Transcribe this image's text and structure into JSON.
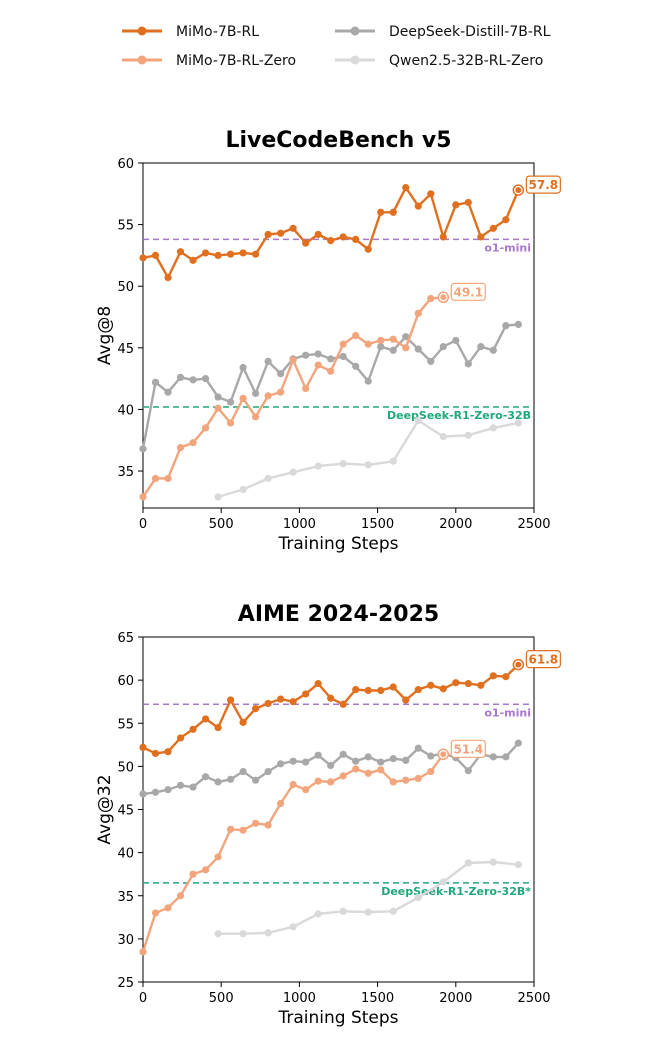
{
  "legend": [
    {
      "name": "MiMo-7B-RL",
      "color": "#e07020"
    },
    {
      "name": "DeepSeek-Distill-7B-RL",
      "color": "#a8a8a8"
    },
    {
      "name": "MiMo-7B-RL-Zero",
      "color": "#f2a57c"
    },
    {
      "name": "Qwen2.5-32B-RL-Zero",
      "color": "#d9d9d9"
    }
  ],
  "chart_data": [
    {
      "type": "line",
      "title": "LiveCodeBench v5",
      "xlabel": "Training Steps",
      "ylabel": "Avg@8",
      "xlim": [
        0,
        2500
      ],
      "ylim": [
        32,
        60
      ],
      "xticks": [
        0,
        500,
        1000,
        1500,
        2000,
        2500
      ],
      "yticks": [
        35,
        40,
        45,
        50,
        55,
        60
      ],
      "grid": false,
      "series": [
        {
          "name": "MiMo-7B-RL",
          "color": "#e07020",
          "x": [
            0,
            80,
            160,
            240,
            320,
            400,
            480,
            560,
            640,
            720,
            800,
            880,
            960,
            1040,
            1120,
            1200,
            1280,
            1360,
            1440,
            1520,
            1600,
            1680,
            1760,
            1840,
            1920,
            2000,
            2080,
            2160,
            2240,
            2320,
            2400
          ],
          "y": [
            52.3,
            52.5,
            50.7,
            52.8,
            52.1,
            52.7,
            52.5,
            52.6,
            52.7,
            52.6,
            54.2,
            54.3,
            54.7,
            53.5,
            54.2,
            53.7,
            54.0,
            53.8,
            53.0,
            56.0,
            56.0,
            58.0,
            56.5,
            57.5,
            54.0,
            56.6,
            56.8,
            54.0,
            54.7,
            55.4,
            57.8
          ]
        },
        {
          "name": "MiMo-7B-RL-Zero",
          "color": "#f2a57c",
          "x": [
            0,
            80,
            160,
            240,
            320,
            400,
            480,
            560,
            640,
            720,
            800,
            880,
            960,
            1040,
            1120,
            1200,
            1280,
            1360,
            1440,
            1520,
            1600,
            1680,
            1760,
            1840,
            1920
          ],
          "y": [
            32.9,
            34.4,
            34.4,
            36.9,
            37.3,
            38.5,
            40.1,
            38.9,
            40.9,
            39.4,
            41.1,
            41.4,
            44.0,
            41.7,
            43.6,
            43.1,
            45.3,
            46.0,
            45.3,
            45.6,
            45.7,
            45.0,
            47.8,
            49.0,
            49.1
          ]
        },
        {
          "name": "DeepSeek-Distill-7B-RL",
          "color": "#a8a8a8",
          "x": [
            0,
            80,
            160,
            240,
            320,
            400,
            480,
            560,
            640,
            720,
            800,
            880,
            960,
            1040,
            1120,
            1200,
            1280,
            1360,
            1440,
            1520,
            1600,
            1680,
            1760,
            1840,
            1920,
            2000,
            2080,
            2160,
            2240,
            2320,
            2400
          ],
          "y": [
            36.8,
            42.2,
            41.4,
            42.6,
            42.4,
            42.5,
            41.0,
            40.6,
            43.4,
            41.3,
            43.9,
            42.9,
            44.1,
            44.4,
            44.5,
            44.1,
            44.3,
            43.5,
            42.3,
            45.1,
            44.8,
            45.9,
            44.9,
            43.9,
            45.1,
            45.6,
            43.7,
            45.1,
            44.8,
            46.8,
            46.9
          ]
        },
        {
          "name": "Qwen2.5-32B-RL-Zero",
          "color": "#d9d9d9",
          "x": [
            480,
            640,
            800,
            960,
            1120,
            1280,
            1440,
            1600,
            1760,
            1920,
            2080,
            2240,
            2400
          ],
          "y": [
            32.9,
            33.5,
            34.4,
            34.9,
            35.4,
            35.6,
            35.5,
            35.8,
            39.1,
            37.8,
            37.9,
            38.5,
            38.9
          ]
        }
      ],
      "reference_lines": [
        {
          "label": "o1-mini",
          "value": 53.8,
          "color": "#a878c8"
        },
        {
          "label": "DeepSeek-R1-Zero-32B",
          "value": 40.2,
          "color": "#20a878"
        }
      ],
      "annotations": [
        {
          "series": "MiMo-7B-RL",
          "text": "57.8"
        },
        {
          "series": "MiMo-7B-RL-Zero",
          "text": "49.1"
        }
      ]
    },
    {
      "type": "line",
      "title": "AIME 2024-2025",
      "xlabel": "Training Steps",
      "ylabel": "Avg@32",
      "xlim": [
        0,
        2500
      ],
      "ylim": [
        25,
        65
      ],
      "xticks": [
        0,
        500,
        1000,
        1500,
        2000,
        2500
      ],
      "yticks": [
        25,
        30,
        35,
        40,
        45,
        50,
        55,
        60,
        65
      ],
      "grid": false,
      "series": [
        {
          "name": "MiMo-7B-RL",
          "color": "#e07020",
          "x": [
            0,
            80,
            160,
            240,
            320,
            400,
            480,
            560,
            640,
            720,
            800,
            880,
            960,
            1040,
            1120,
            1200,
            1280,
            1360,
            1440,
            1520,
            1600,
            1680,
            1760,
            1840,
            1920,
            2000,
            2080,
            2160,
            2240,
            2320,
            2400
          ],
          "y": [
            52.2,
            51.5,
            51.7,
            53.3,
            54.3,
            55.5,
            54.5,
            57.7,
            55.1,
            56.7,
            57.3,
            57.8,
            57.5,
            58.4,
            59.6,
            57.9,
            57.2,
            58.9,
            58.8,
            58.8,
            59.2,
            57.7,
            58.9,
            59.4,
            59.0,
            59.7,
            59.6,
            59.4,
            60.5,
            60.4,
            61.8
          ]
        },
        {
          "name": "MiMo-7B-RL-Zero",
          "color": "#f2a57c",
          "x": [
            0,
            80,
            160,
            240,
            320,
            400,
            480,
            560,
            640,
            720,
            800,
            880,
            960,
            1040,
            1120,
            1200,
            1280,
            1360,
            1440,
            1520,
            1600,
            1680,
            1760,
            1840,
            1920
          ],
          "y": [
            28.5,
            33.0,
            33.6,
            35.0,
            37.5,
            38.0,
            39.5,
            42.7,
            42.6,
            43.4,
            43.2,
            45.7,
            47.9,
            47.3,
            48.3,
            48.2,
            48.9,
            49.7,
            49.2,
            49.6,
            48.2,
            48.4,
            48.6,
            49.4,
            51.4
          ]
        },
        {
          "name": "DeepSeek-Distill-7B-RL",
          "color": "#a8a8a8",
          "x": [
            0,
            80,
            160,
            240,
            320,
            400,
            480,
            560,
            640,
            720,
            800,
            880,
            960,
            1040,
            1120,
            1200,
            1280,
            1360,
            1440,
            1520,
            1600,
            1680,
            1760,
            1840,
            1920,
            2000,
            2080,
            2160,
            2240,
            2320,
            2400
          ],
          "y": [
            46.8,
            47.0,
            47.3,
            47.8,
            47.6,
            48.8,
            48.2,
            48.5,
            49.4,
            48.4,
            49.4,
            50.3,
            50.6,
            50.5,
            51.3,
            50.1,
            51.4,
            50.6,
            51.1,
            50.5,
            50.9,
            50.7,
            52.1,
            51.2,
            51.5,
            51.0,
            49.5,
            51.4,
            51.1,
            51.1,
            52.7
          ]
        },
        {
          "name": "Qwen2.5-32B-RL-Zero",
          "color": "#d9d9d9",
          "x": [
            480,
            640,
            800,
            960,
            1120,
            1280,
            1440,
            1600,
            1760,
            1920,
            2080,
            2240,
            2400
          ],
          "y": [
            30.6,
            30.6,
            30.7,
            31.4,
            32.9,
            33.2,
            33.1,
            33.2,
            34.8,
            36.6,
            38.8,
            38.9,
            38.6
          ]
        }
      ],
      "reference_lines": [
        {
          "label": "o1-mini",
          "value": 57.2,
          "color": "#a878c8"
        },
        {
          "label": "DeepSeek-R1-Zero-32B*",
          "value": 36.5,
          "color": "#20a878"
        }
      ],
      "annotations": [
        {
          "series": "MiMo-7B-RL",
          "text": "61.8"
        },
        {
          "series": "MiMo-7B-RL-Zero",
          "text": "51.4"
        }
      ]
    }
  ]
}
